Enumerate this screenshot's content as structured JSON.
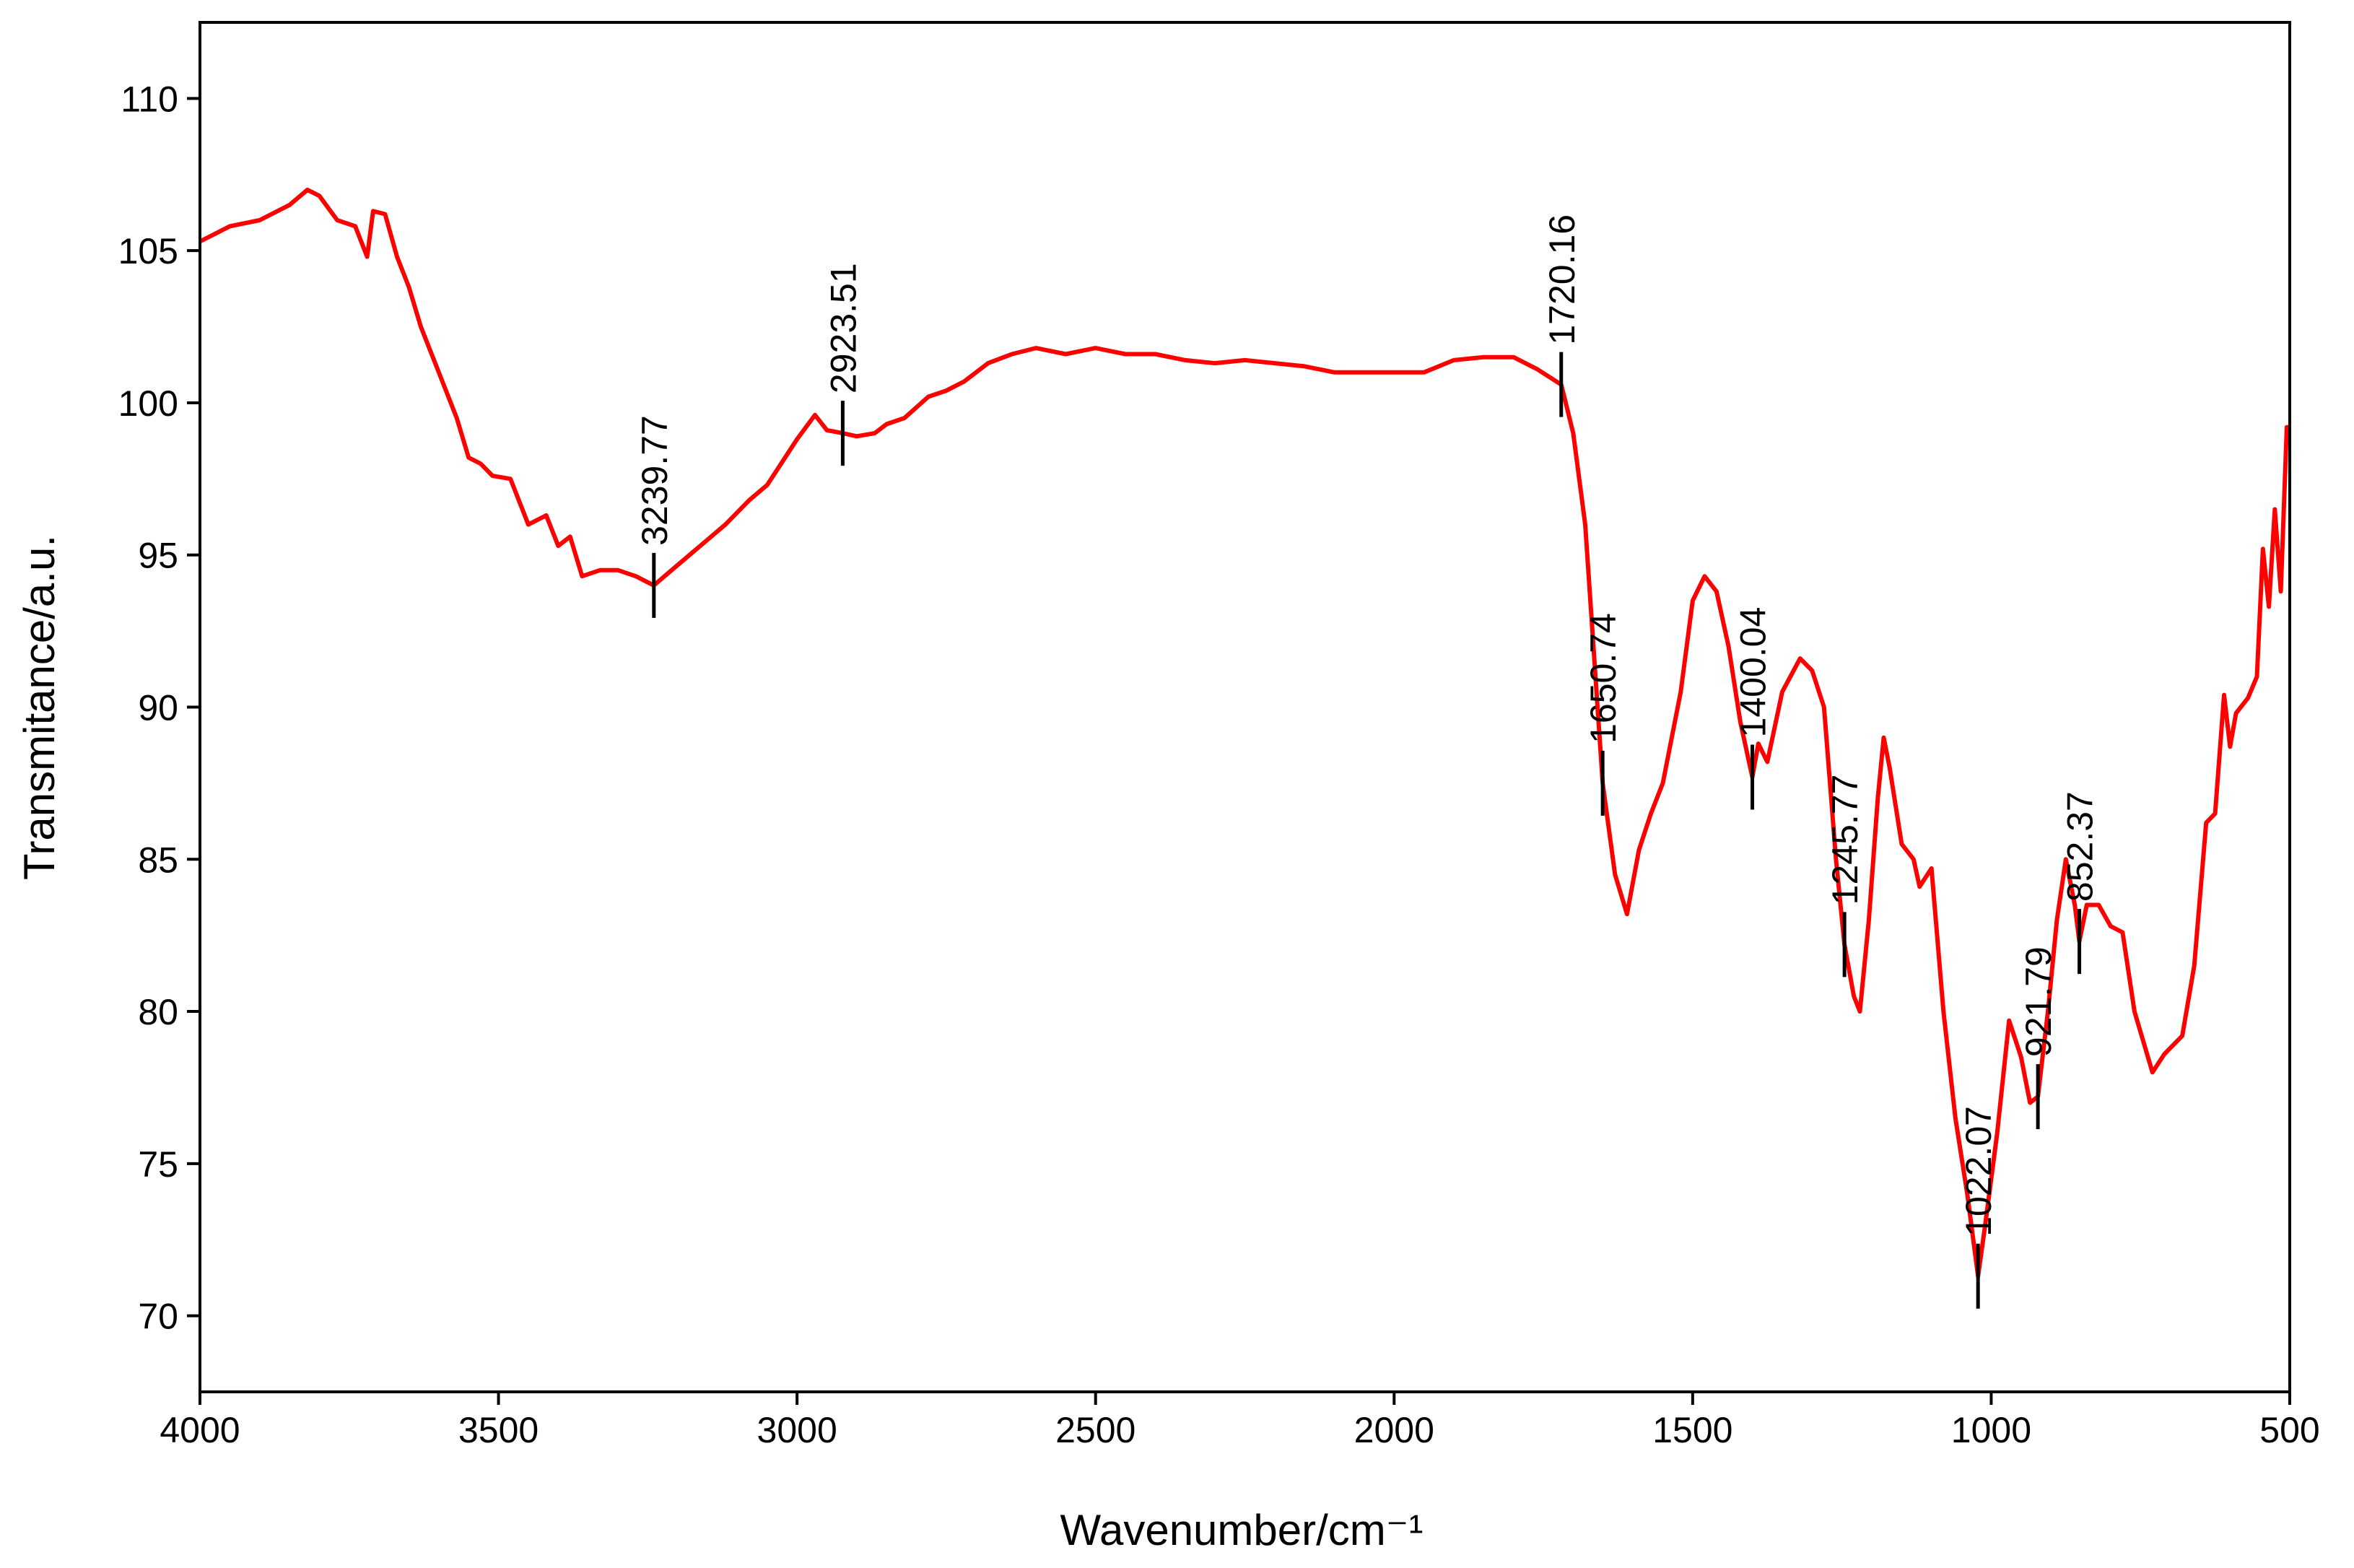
{
  "chart_data": {
    "type": "line",
    "x_label": "Wavenumber/cm⁻¹",
    "y_label": "Transmitance/a.u.",
    "xlim": [
      4000,
      500
    ],
    "ylim": [
      67.5,
      112.5
    ],
    "xticks": [
      4000,
      3500,
      3000,
      2500,
      2000,
      1500,
      1000,
      500
    ],
    "yticks": [
      70,
      75,
      80,
      85,
      90,
      95,
      100,
      105,
      110
    ],
    "series": [
      {
        "color": "#ff0000",
        "x": [
          4000,
          3950,
          3900,
          3850,
          3820,
          3800,
          3770,
          3740,
          3720,
          3710,
          3690,
          3670,
          3650,
          3630,
          3600,
          3570,
          3550,
          3530,
          3510,
          3480,
          3450,
          3420,
          3400,
          3380,
          3360,
          3330,
          3300,
          3270,
          3239.77,
          3210,
          3180,
          3150,
          3120,
          3080,
          3050,
          3020,
          3000,
          2970,
          2950,
          2923.51,
          2900,
          2870,
          2850,
          2820,
          2780,
          2750,
          2720,
          2680,
          2640,
          2600,
          2550,
          2500,
          2450,
          2400,
          2350,
          2300,
          2250,
          2200,
          2150,
          2100,
          2050,
          2000,
          1950,
          1900,
          1850,
          1800,
          1760,
          1720.16,
          1700,
          1680,
          1650.74,
          1630,
          1610,
          1590,
          1570,
          1550,
          1520,
          1500,
          1480,
          1460,
          1440,
          1420,
          1400.04,
          1390,
          1375,
          1350,
          1320,
          1300,
          1280,
          1260,
          1245.77,
          1230,
          1220,
          1205,
          1190,
          1180,
          1170,
          1150,
          1130,
          1120,
          1100,
          1080,
          1060,
          1040,
          1022.07,
          1010,
          990,
          970,
          950,
          935,
          921.79,
          905,
          890,
          875,
          860,
          852.37,
          840,
          820,
          800,
          780,
          760,
          730,
          710,
          680,
          660,
          640,
          625,
          610,
          600,
          590,
          570,
          555,
          545,
          535,
          525,
          515,
          505,
          500
        ],
        "values": [
          105.3,
          105.8,
          106.0,
          106.5,
          107.0,
          106.8,
          106.0,
          105.8,
          104.8,
          106.3,
          106.2,
          104.8,
          103.8,
          102.5,
          101.0,
          99.5,
          98.2,
          98.0,
          97.6,
          97.5,
          96.0,
          96.3,
          95.3,
          95.6,
          94.3,
          94.5,
          94.5,
          94.3,
          94.0,
          94.5,
          95.0,
          95.5,
          96.0,
          96.8,
          97.3,
          98.2,
          98.8,
          99.6,
          99.1,
          99.0,
          98.9,
          99.0,
          99.3,
          99.5,
          100.2,
          100.4,
          100.7,
          101.3,
          101.6,
          101.8,
          101.6,
          101.8,
          101.6,
          101.6,
          101.4,
          101.3,
          101.4,
          101.3,
          101.2,
          101.0,
          101.0,
          101.0,
          101.0,
          101.4,
          101.5,
          101.5,
          101.1,
          100.6,
          99.0,
          96.0,
          87.5,
          84.5,
          83.2,
          85.3,
          86.5,
          87.5,
          90.5,
          93.5,
          94.3,
          93.8,
          92.0,
          89.5,
          87.7,
          88.8,
          88.2,
          90.5,
          91.6,
          91.2,
          90.0,
          85.0,
          82.2,
          80.5,
          80.0,
          83.0,
          87.0,
          89.0,
          88.0,
          85.5,
          85.0,
          84.1,
          84.7,
          80.0,
          76.5,
          74.0,
          71.3,
          73.0,
          76.0,
          79.7,
          78.5,
          77.0,
          77.2,
          80.0,
          83.0,
          85.0,
          83.5,
          82.3,
          83.5,
          83.5,
          82.8,
          82.6,
          80.0,
          78.0,
          78.6,
          79.2,
          81.5,
          86.2,
          86.5,
          90.4,
          88.7,
          89.8,
          90.3,
          91.0,
          95.2,
          93.3,
          96.5,
          93.8,
          99.2,
          99.2
        ]
      }
    ],
    "peaks": [
      {
        "x": 3239.77,
        "y": 94.0
      },
      {
        "x": 2923.51,
        "y": 99.0
      },
      {
        "x": 1720.16,
        "y": 100.6
      },
      {
        "x": 1650.74,
        "y": 87.5
      },
      {
        "x": 1400.04,
        "y": 87.7
      },
      {
        "x": 1245.77,
        "y": 82.2
      },
      {
        "x": 1022.07,
        "y": 71.3
      },
      {
        "x": 921.79,
        "y": 77.2
      },
      {
        "x": 852.37,
        "y": 82.3
      }
    ]
  }
}
